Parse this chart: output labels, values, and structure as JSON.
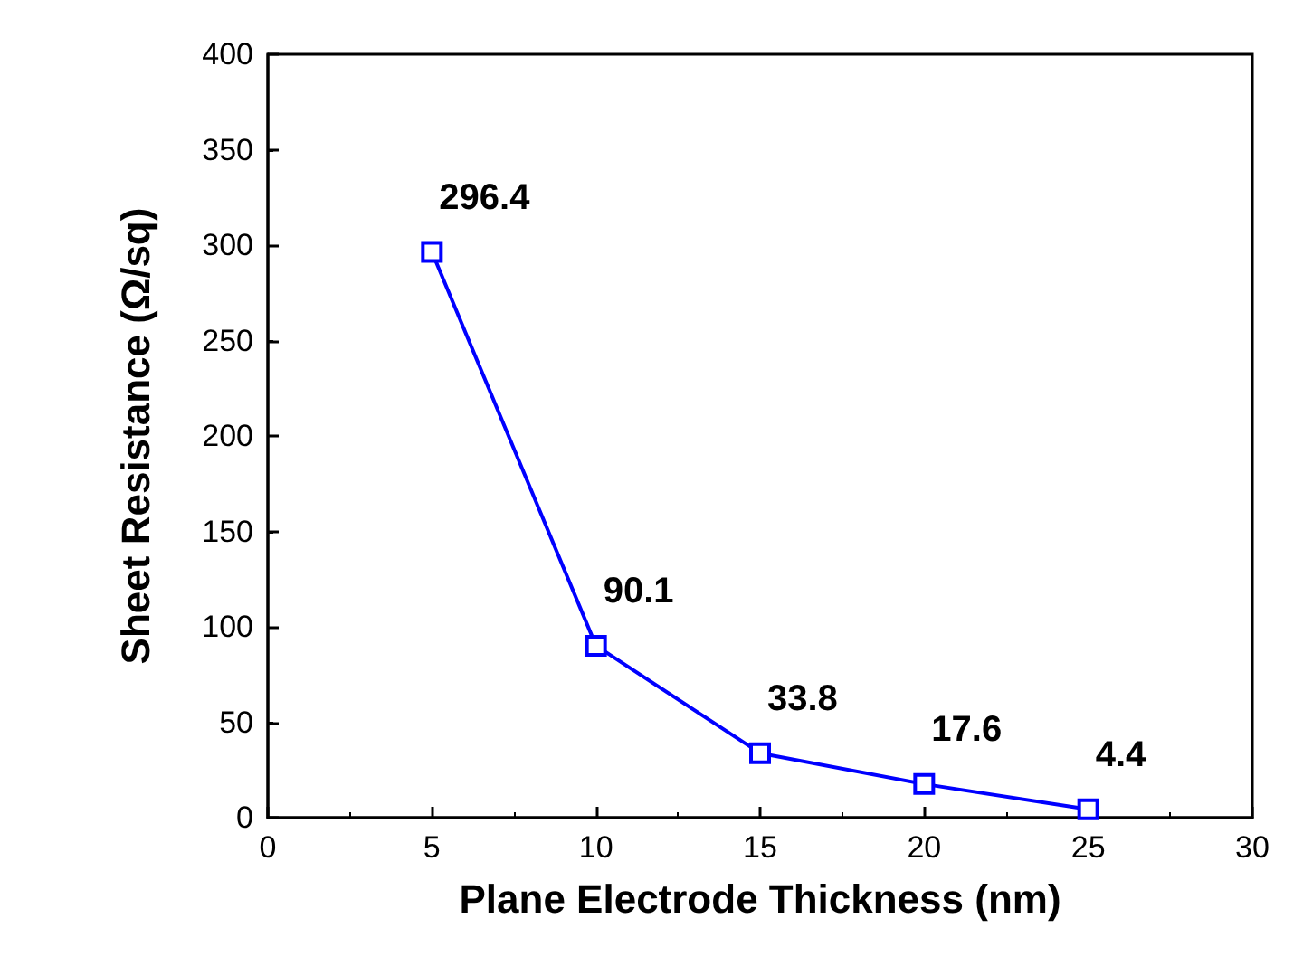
{
  "chart_data": {
    "type": "line",
    "xlabel": "Plane Electrode Thickness (nm)",
    "ylabel": "Sheet Resistance (Ω/sq)",
    "x": [
      5,
      10,
      15,
      20,
      25
    ],
    "series": [
      {
        "color": "#0000ff",
        "values": [
          296.4,
          90.1,
          33.8,
          17.6,
          4.4
        ]
      }
    ],
    "xlim": [
      0,
      30
    ],
    "xticks": [
      0,
      5,
      10,
      15,
      20,
      25,
      30
    ],
    "ylim": [
      0,
      400
    ],
    "yticks": [
      0,
      50,
      100,
      150,
      200,
      250,
      300,
      350,
      400
    ],
    "data_labels": true,
    "marker": "square",
    "line_style": "solid",
    "grid": false
  }
}
